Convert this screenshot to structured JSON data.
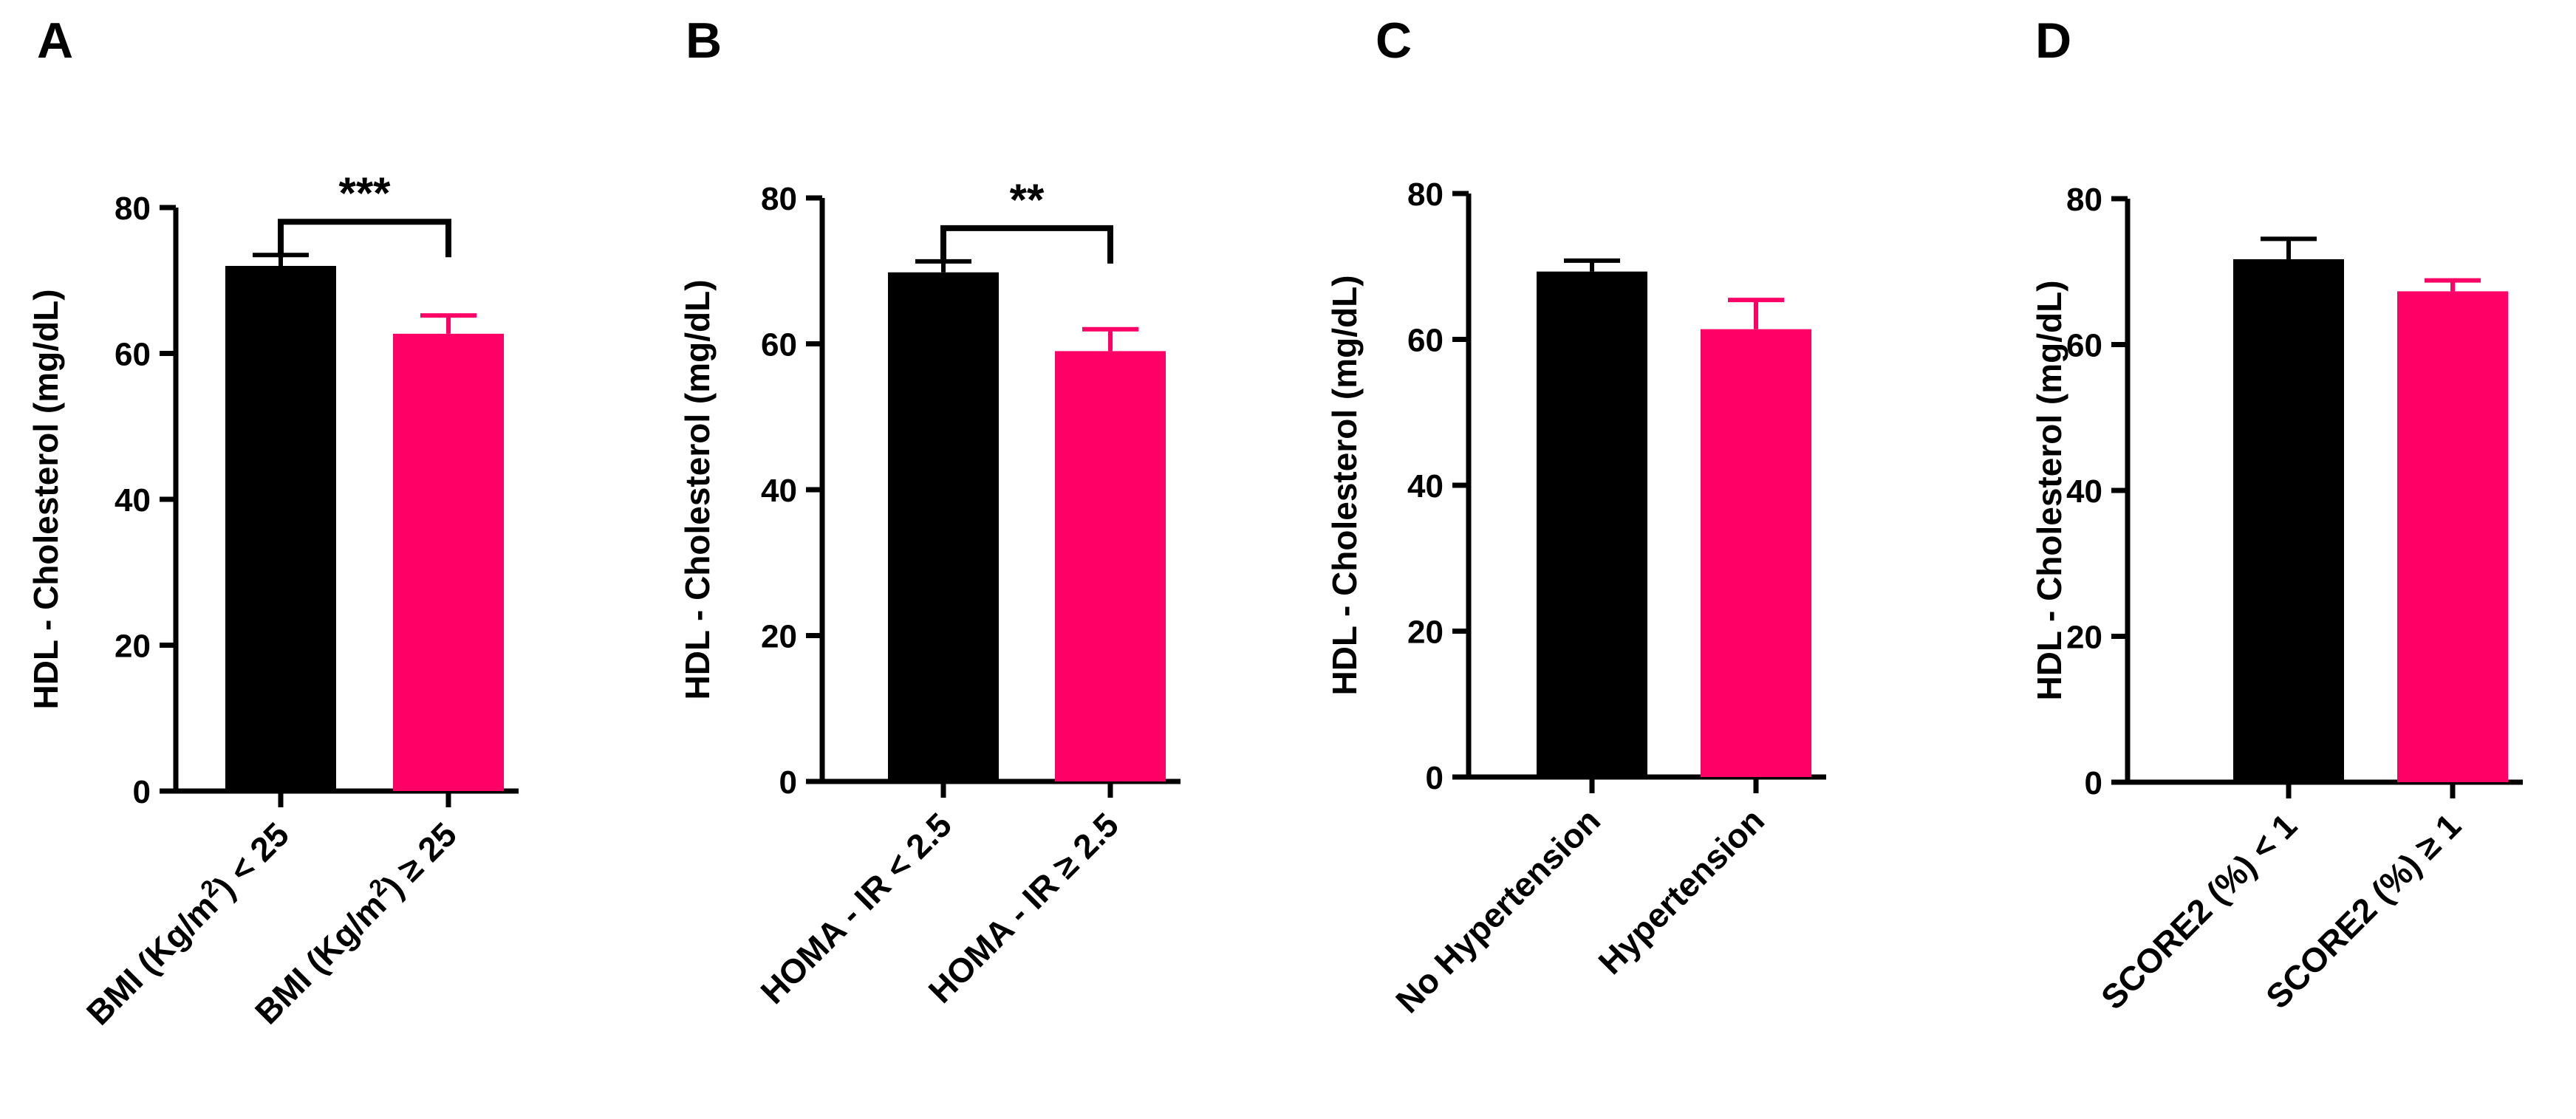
{
  "chart_data": [
    {
      "panel": "A",
      "type": "bar",
      "ylabel": "HDL - Cholesterol (mg/dL)",
      "ylim": [
        0,
        80
      ],
      "yticks": [
        0,
        20,
        40,
        60,
        80
      ],
      "categories": [
        "BMI (Kg/m2) < 25",
        "BMI (Kg/m2) ≥ 25"
      ],
      "category_parts": [
        [
          "BMI (Kg/m",
          "2",
          ") < 25"
        ],
        [
          "BMI (Kg/m",
          "2",
          ") ≥ 25"
        ]
      ],
      "values": [
        72,
        62.7
      ],
      "errors": [
        1.5,
        2.5
      ],
      "colors": [
        "#000000",
        "#ff0066"
      ],
      "significance": "***"
    },
    {
      "panel": "B",
      "type": "bar",
      "ylabel": "HDL - Cholesterol (mg/dL)",
      "ylim": [
        0,
        80
      ],
      "yticks": [
        0,
        20,
        40,
        60,
        80
      ],
      "categories": [
        "HOMA - IR < 2.5",
        "HOMA - IR ≥ 2.5"
      ],
      "category_parts": [
        [
          "HOMA - IR < 2.5"
        ],
        [
          "HOMA - IR ≥ 2.5"
        ]
      ],
      "values": [
        69.8,
        59
      ],
      "errors": [
        1.5,
        3.0
      ],
      "colors": [
        "#000000",
        "#ff0066"
      ],
      "significance": "**"
    },
    {
      "panel": "C",
      "type": "bar",
      "ylabel": "HDL - Cholesterol (mg/dL)",
      "ylim": [
        0,
        80
      ],
      "yticks": [
        0,
        20,
        40,
        60,
        80
      ],
      "categories": [
        "No Hypertension",
        "Hypertension"
      ],
      "category_parts": [
        [
          "No Hypertension"
        ],
        [
          "Hypertension"
        ]
      ],
      "values": [
        69.3,
        61.4
      ],
      "errors": [
        1.5,
        4.0
      ],
      "colors": [
        "#000000",
        "#ff0066"
      ],
      "significance": ""
    },
    {
      "panel": "D",
      "type": "bar",
      "ylabel": "HDL - Cholesterol (mg/dL)",
      "ylim": [
        0,
        80
      ],
      "yticks": [
        0,
        20,
        40,
        60,
        80
      ],
      "categories": [
        "SCORE2 (%) < 1",
        "SCORE2 (%) ≥ 1"
      ],
      "category_parts": [
        [
          "SCORE2 (%) < 1"
        ],
        [
          "SCORE2 (%) ≥ 1"
        ]
      ],
      "values": [
        71.7,
        67.3
      ],
      "errors": [
        2.8,
        1.5
      ],
      "colors": [
        "#000000",
        "#ff0066"
      ],
      "significance": ""
    }
  ]
}
